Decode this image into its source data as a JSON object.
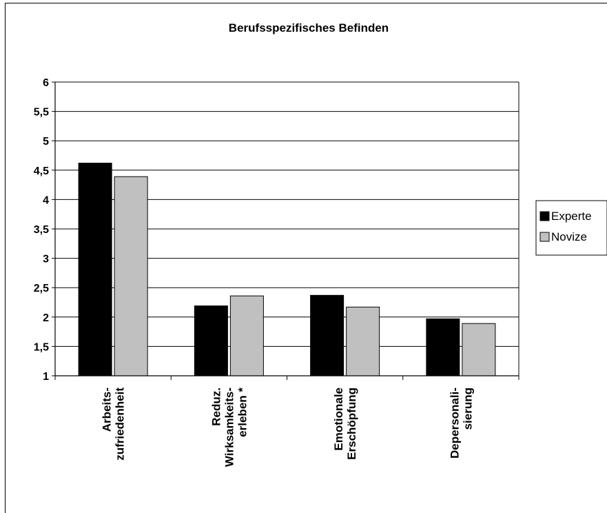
{
  "chart_data": {
    "type": "bar",
    "title": "Berufsspezifisches Befinden",
    "xlabel": "",
    "ylabel": "",
    "ylim": [
      1,
      6
    ],
    "y_ticks": [
      "1",
      "1,5",
      "2",
      "2,5",
      "3",
      "3,5",
      "4",
      "4,5",
      "5",
      "5,5",
      "6"
    ],
    "categories": [
      [
        "Arbeits-",
        "zufriedenheit"
      ],
      [
        "Reduz.",
        "Wirksamkeits-",
        "erleben *"
      ],
      [
        "Emotionale",
        "Erschöpfung"
      ],
      [
        "Depersonali-",
        "sierung"
      ]
    ],
    "series": [
      {
        "name": "Experte",
        "color": "#000000",
        "values": [
          4.62,
          2.19,
          2.37,
          1.97
        ]
      },
      {
        "name": "Novize",
        "color": "#c0c0c0",
        "values": [
          4.39,
          2.36,
          2.17,
          1.89
        ]
      }
    ],
    "grid": true,
    "legend_position": "right"
  }
}
